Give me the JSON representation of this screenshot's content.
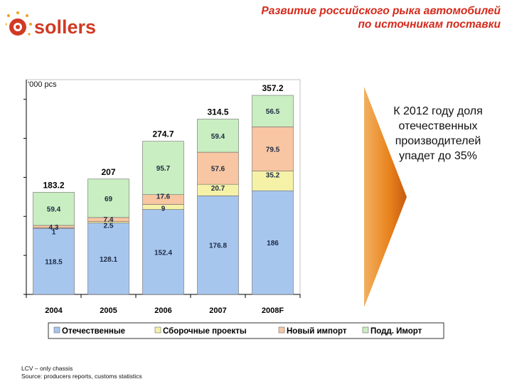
{
  "header": {
    "logo_text": "sollers",
    "title_lines": [
      "Развитие российского рыка автомобилей",
      "по источникам поставки"
    ]
  },
  "chart_data": {
    "type": "bar",
    "stacked": true,
    "unit_label": "'000 pcs",
    "categories": [
      "2004",
      "2005",
      "2006",
      "2007",
      "2008F"
    ],
    "series": [
      {
        "name": "Отечественные",
        "color": "#a7c6ee",
        "values": [
          118.5,
          128.1,
          152.4,
          176.8,
          186
        ]
      },
      {
        "name": "Сборочные проекты",
        "color": "#f5f2a8",
        "values": [
          1,
          2.5,
          9,
          20.7,
          35.2
        ]
      },
      {
        "name": "Новый импорт",
        "color": "#f8c6a2",
        "values": [
          4.3,
          7.4,
          17.6,
          57.6,
          79.5
        ]
      },
      {
        "name": "Подд. Иморт",
        "color": "#c9eec1",
        "values": [
          59.4,
          69,
          95.7,
          59.4,
          56.5
        ]
      }
    ],
    "totals": [
      183.2,
      207,
      274.7,
      314.5,
      357.2
    ],
    "ylim": [
      0,
      370
    ],
    "grid": false,
    "legend_position": "bottom"
  },
  "callout": {
    "text": "К 2012 году доля отечественных производителей упадет до 35%"
  },
  "footnote": {
    "lines": [
      "LCV – only chassis",
      "Source: producers reports, customs statistics"
    ]
  },
  "colors": {
    "title": "#d42a1c",
    "logo": "#d13a24",
    "callout_arrow": "#e8821c"
  }
}
